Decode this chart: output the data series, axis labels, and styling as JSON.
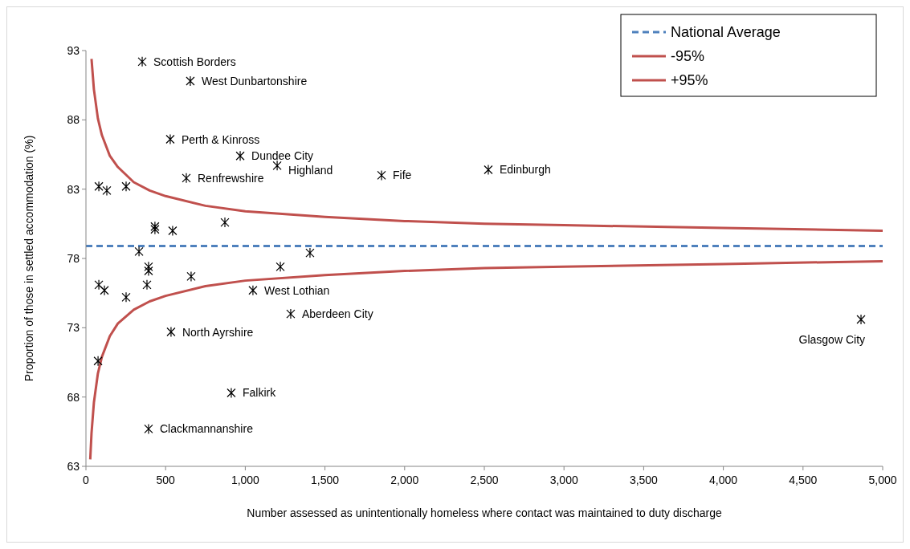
{
  "chart_data": {
    "type": "scatter",
    "xlabel": "Number assessed as unintentionally homeless where contact was maintained to duty discharge",
    "ylabel": "Proportion of those in settled accommodation (%)",
    "xlim": [
      0,
      5000
    ],
    "ylim": [
      63,
      93
    ],
    "xticks": [
      0,
      500,
      {
        "value": 1000,
        "label": "1,000"
      },
      {
        "value": 1500,
        "label": "1,500"
      },
      {
        "value": 2000,
        "label": "2,000"
      },
      {
        "value": 2500,
        "label": "2,500"
      },
      {
        "value": 3000,
        "label": "3,000"
      },
      {
        "value": 3500,
        "label": "3,500"
      },
      {
        "value": 4000,
        "label": "4,000"
      },
      {
        "value": 4500,
        "label": "4,500"
      },
      {
        "value": 5000,
        "label": "5,000"
      }
    ],
    "yticks": [
      63,
      68,
      73,
      78,
      83,
      88,
      93
    ],
    "grid": false,
    "legend": "top right",
    "marker": "cross",
    "series": [
      {
        "name": "National Average",
        "type": "line",
        "color": "#4f81bd",
        "line_style": "dashed",
        "marker": "none",
        "x": [
          0,
          5000
        ],
        "values": [
          78.9,
          78.9
        ]
      },
      {
        "name": "-95%",
        "type": "line",
        "color": "#c0504d",
        "line_style": "solid",
        "marker": "none",
        "x": [
          27,
          35,
          50,
          75,
          100,
          150,
          200,
          300,
          400,
          500,
          750,
          1000,
          1500,
          2000,
          2500,
          3000,
          4000,
          5000
        ],
        "values": [
          63.5,
          65.4,
          67.6,
          69.7,
          70.9,
          72.4,
          73.3,
          74.3,
          74.9,
          75.3,
          76.0,
          76.4,
          76.8,
          77.1,
          77.3,
          77.4,
          77.6,
          77.8
        ]
      },
      {
        "name": "+95%",
        "type": "line",
        "color": "#c0504d",
        "line_style": "solid",
        "marker": "none",
        "x": [
          35,
          50,
          75,
          100,
          150,
          200,
          300,
          400,
          500,
          750,
          1000,
          1500,
          2000,
          2500,
          3000,
          4000,
          5000
        ],
        "values": [
          92.4,
          90.2,
          88.1,
          86.9,
          85.4,
          84.6,
          83.5,
          82.9,
          82.5,
          81.8,
          81.4,
          81.0,
          80.7,
          80.5,
          80.4,
          80.2,
          80.0
        ]
      },
      {
        "color": "#000000",
        "x": [
          353,
          655,
          529,
          968,
          1200,
          630,
          1855,
          2525,
          81,
          131,
          252,
          433,
          433,
          544,
          872,
          333,
          393,
          393,
          1220,
          1406,
          81,
          116,
          252,
          383,
          660,
          1048,
          1285,
          534,
          76,
          912,
          393,
          4864
        ],
        "values": [
          92.2,
          90.8,
          86.6,
          85.4,
          84.7,
          83.8,
          84.0,
          84.4,
          83.2,
          82.9,
          83.2,
          80.3,
          80.1,
          80.0,
          80.6,
          78.5,
          77.4,
          77.1,
          77.4,
          78.4,
          76.1,
          75.7,
          75.2,
          76.1,
          76.7,
          75.7,
          74.0,
          72.7,
          70.6,
          68.3,
          65.7,
          73.6
        ]
      }
    ],
    "annotations": [
      {
        "text": "Scottish Borders",
        "x": 353,
        "y": 92.2
      },
      {
        "text": "West Dunbartonshire",
        "x": 655,
        "y": 90.8
      },
      {
        "text": "Perth & Kinross",
        "x": 529,
        "y": 86.6
      },
      {
        "text": "Dundee City",
        "x": 968,
        "y": 85.4
      },
      {
        "text": "Highland",
        "x": 1200,
        "y": 84.7
      },
      {
        "text": "Renfrewshire",
        "x": 630,
        "y": 83.8
      },
      {
        "text": "Fife",
        "x": 1855,
        "y": 84.0
      },
      {
        "text": "Edinburgh",
        "x": 2525,
        "y": 84.4
      },
      {
        "text": "West Lothian",
        "x": 1048,
        "y": 75.7
      },
      {
        "text": "Aberdeen City",
        "x": 1285,
        "y": 74.0
      },
      {
        "text": "North Ayrshire",
        "x": 534,
        "y": 72.7
      },
      {
        "text": "Falkirk",
        "x": 912,
        "y": 68.3
      },
      {
        "text": "Clackmannanshire",
        "x": 393,
        "y": 65.7
      },
      {
        "text": "Glasgow City",
        "x": 4864,
        "y": 73.6
      }
    ]
  }
}
